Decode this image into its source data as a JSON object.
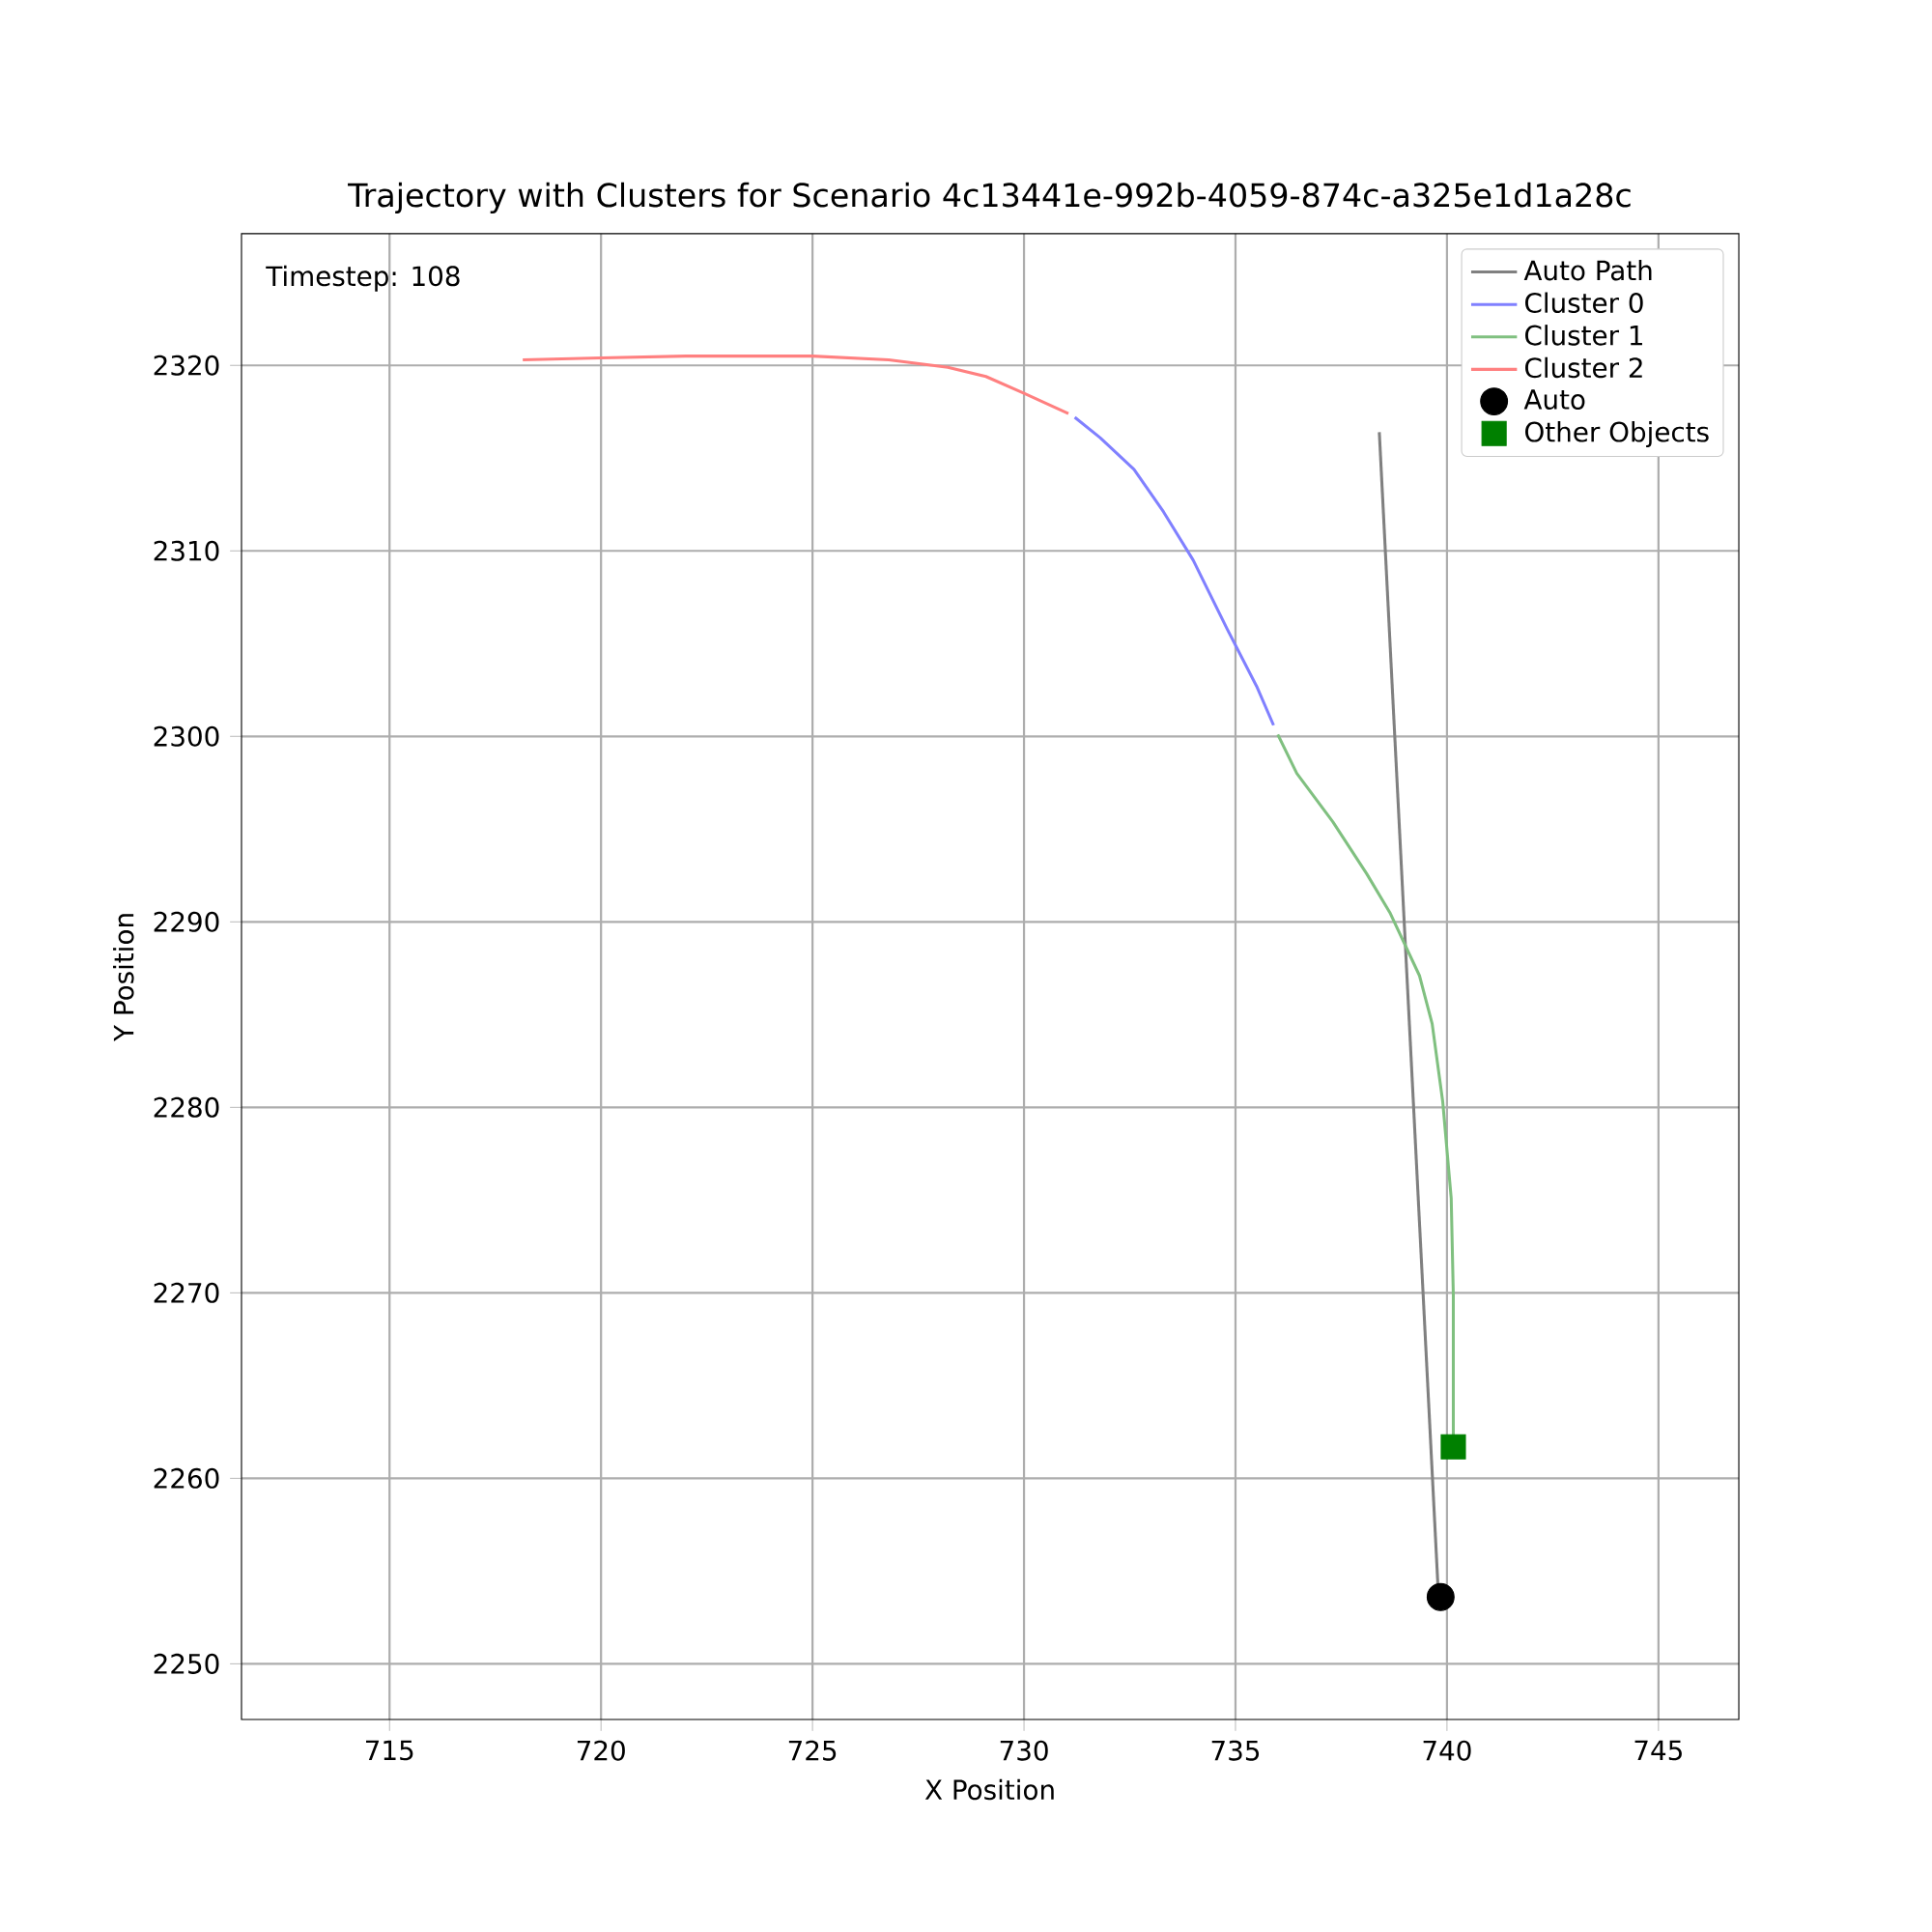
{
  "chart_data": {
    "type": "line",
    "title": "Trajectory with Clusters for Scenario 4c13441e-992b-4059-874c-a325e1d1a28c",
    "xlabel": "X Position",
    "ylabel": "Y Position",
    "annotations": [
      "Timestep: 108"
    ],
    "xlim": [
      711.5,
      746.9
    ],
    "ylim": [
      2247.0,
      2327.1
    ],
    "xticks": [
      715,
      720,
      725,
      730,
      735,
      740,
      745
    ],
    "yticks": [
      2250,
      2260,
      2270,
      2280,
      2290,
      2300,
      2310,
      2320
    ],
    "grid": true,
    "legend": "top right",
    "series": [
      {
        "name": "Auto Path",
        "marker": "none",
        "color": "#808080",
        "x": [
          738.4,
          739.8
        ],
        "values": [
          2316.4,
          2253.6
        ]
      },
      {
        "name": "Cluster 0",
        "marker": "none",
        "color": "#8080ff",
        "x": [
          731.2,
          731.8,
          732.6,
          733.3,
          734.0,
          734.8,
          735.5,
          735.9
        ],
        "values": [
          2317.2,
          2316.1,
          2314.4,
          2312.1,
          2309.5,
          2305.8,
          2302.7,
          2300.6
        ]
      },
      {
        "name": "Cluster 1",
        "marker": "none",
        "color": "#80c080",
        "x": [
          736.0,
          736.45,
          737.3,
          738.1,
          738.65,
          739.35,
          739.65,
          739.9,
          740.1,
          740.15,
          740.15
        ],
        "values": [
          2300.1,
          2298.0,
          2295.4,
          2292.6,
          2290.5,
          2287.1,
          2284.5,
          2280.3,
          2275.1,
          2269.9,
          2261.7
        ]
      },
      {
        "name": "Cluster 2",
        "marker": "none",
        "color": "#ff8080",
        "x": [
          718.15,
          720.0,
          722.0,
          725.0,
          726.8,
          728.2,
          729.1,
          730.0,
          731.05
        ],
        "values": [
          2320.3,
          2320.4,
          2320.5,
          2320.5,
          2320.3,
          2319.9,
          2319.4,
          2318.5,
          2317.4
        ]
      },
      {
        "name": "Auto",
        "type": "scatter",
        "marker": "circle",
        "color": "#000000",
        "x": [
          739.85
        ],
        "values": [
          2253.6
        ]
      },
      {
        "name": "Other Objects",
        "type": "scatter",
        "marker": "square",
        "color": "#008000",
        "x": [
          740.15
        ],
        "values": [
          2261.7
        ]
      }
    ]
  }
}
